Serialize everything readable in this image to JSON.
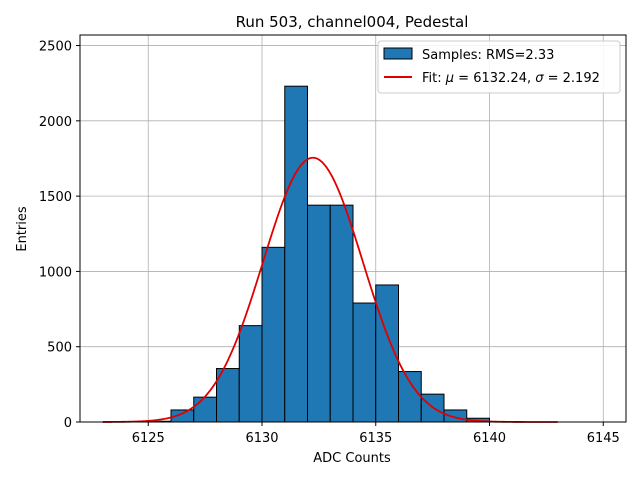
{
  "chart_data": {
    "type": "bar",
    "title": "Run 503, channel004, Pedestal",
    "xlabel": "ADC Counts",
    "ylabel": "Entries",
    "xlim": [
      6122,
      6146
    ],
    "ylim": [
      0,
      2570
    ],
    "xticks": [
      6125,
      6130,
      6135,
      6140,
      6145
    ],
    "yticks": [
      0,
      500,
      1000,
      1500,
      2000,
      2500
    ],
    "grid": true,
    "legend_position": "upper right",
    "histogram": {
      "name": "Samples: RMS=2.33",
      "color": "#1f77b4",
      "edge_color": "#000000",
      "bin_edges": [
        6125,
        6126,
        6127,
        6128,
        6129,
        6130,
        6131,
        6132,
        6133,
        6134,
        6135,
        6136,
        6137,
        6138,
        6139,
        6140
      ],
      "counts": [
        5,
        80,
        165,
        355,
        640,
        1160,
        2230,
        1440,
        1440,
        790,
        910,
        335,
        185,
        80,
        25
      ]
    },
    "fit": {
      "name_prefix": "Fit: ",
      "mu_symbol": "μ",
      "mu_text": " = 6132.24, ",
      "sigma_symbol": "σ",
      "sigma_text": " = 2.192",
      "color": "#e00000",
      "mu": 6132.24,
      "sigma": 2.192,
      "amplitude": 1755,
      "x_range": [
        6123,
        6143
      ]
    }
  }
}
